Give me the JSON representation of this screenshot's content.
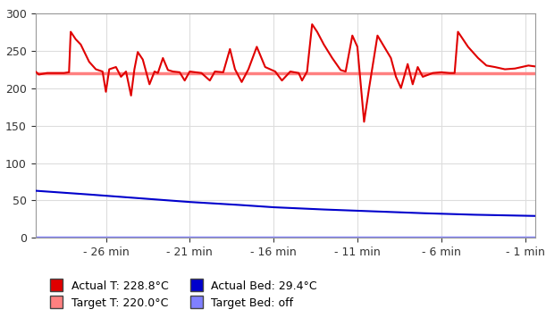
{
  "chart_data": {
    "type": "line",
    "legend": "lower left",
    "grid": true,
    "xlim": [
      -30.2,
      -0.4
    ],
    "xticks": [
      {
        "value": -26,
        "label": "- 26 min"
      },
      {
        "value": -21,
        "label": "- 21 min"
      },
      {
        "value": -16,
        "label": "- 16 min"
      },
      {
        "value": -11,
        "label": "- 11 min"
      },
      {
        "value": -6,
        "label": "- 6 min"
      },
      {
        "value": -1,
        "label": "- 1 min"
      }
    ],
    "ylim": [
      0,
      300
    ],
    "yticks": [
      0,
      50,
      100,
      150,
      200,
      250,
      300
    ],
    "series": [
      {
        "name": "Actual T: 228.8°C",
        "color": "#e00000",
        "line_style": "solid",
        "x": [
          -30.2,
          -30.0,
          -29.5,
          -29.0,
          -28.5,
          -28.2,
          -28.1,
          -27.8,
          -27.5,
          -27.0,
          -26.6,
          -26.2,
          -26.0,
          -25.8,
          -25.4,
          -25.1,
          -24.8,
          -24.5,
          -24.3,
          -24.1,
          -23.8,
          -23.4,
          -23.1,
          -22.9,
          -22.6,
          -22.3,
          -22.0,
          -21.6,
          -21.3,
          -21.0,
          -20.3,
          -19.8,
          -19.5,
          -19.0,
          -18.6,
          -18.3,
          -17.9,
          -17.5,
          -17.0,
          -16.5,
          -15.9,
          -15.5,
          -15.0,
          -14.5,
          -14.3,
          -14.0,
          -13.7,
          -13.4,
          -13.0,
          -12.5,
          -12.0,
          -11.7,
          -11.3,
          -11.0,
          -10.8,
          -10.6,
          -10.3,
          -9.8,
          -9.4,
          -9.0,
          -8.7,
          -8.4,
          -8.0,
          -7.7,
          -7.4,
          -7.1,
          -6.5,
          -6.0,
          -5.5,
          -5.2,
          -5.0,
          -4.7,
          -4.4,
          -3.8,
          -3.3,
          -2.8,
          -2.2,
          -1.6,
          -1.2,
          -0.8,
          -0.4
        ],
        "values": [
          222,
          218,
          220,
          220,
          220,
          221,
          275,
          265,
          258,
          235,
          225,
          222,
          195,
          225,
          228,
          215,
          222,
          190,
          225,
          248,
          238,
          205,
          222,
          220,
          240,
          224,
          222,
          221,
          210,
          222,
          220,
          210,
          222,
          221,
          252,
          225,
          208,
          225,
          255,
          228,
          222,
          210,
          222,
          220,
          210,
          222,
          285,
          275,
          258,
          240,
          224,
          222,
          270,
          255,
          205,
          155,
          200,
          270,
          255,
          240,
          215,
          200,
          232,
          205,
          228,
          215,
          220,
          221,
          220,
          220,
          275,
          265,
          255,
          240,
          230,
          228,
          225,
          226,
          228,
          230,
          228.8
        ]
      },
      {
        "name": "Target T: 220.0°C",
        "color": "#ff8080",
        "line_style": "solid",
        "x": [
          -30.2,
          -0.4
        ],
        "values": [
          220.0,
          220.0
        ]
      },
      {
        "name": "Actual Bed: 29.4°C",
        "color": "#0000cc",
        "line_style": "solid",
        "x": [
          -30.2,
          -27.0,
          -24.0,
          -21.0,
          -18.0,
          -16.0,
          -13.0,
          -10.0,
          -7.0,
          -4.0,
          -0.4
        ],
        "values": [
          63,
          58,
          53,
          48,
          44,
          41,
          38,
          35.5,
          33,
          31,
          29.4
        ]
      },
      {
        "name": "Target Bed: off",
        "color": "#8080ff",
        "line_style": "solid",
        "x": [
          -30.2,
          -0.4
        ],
        "values": [
          0,
          0
        ]
      }
    ]
  }
}
